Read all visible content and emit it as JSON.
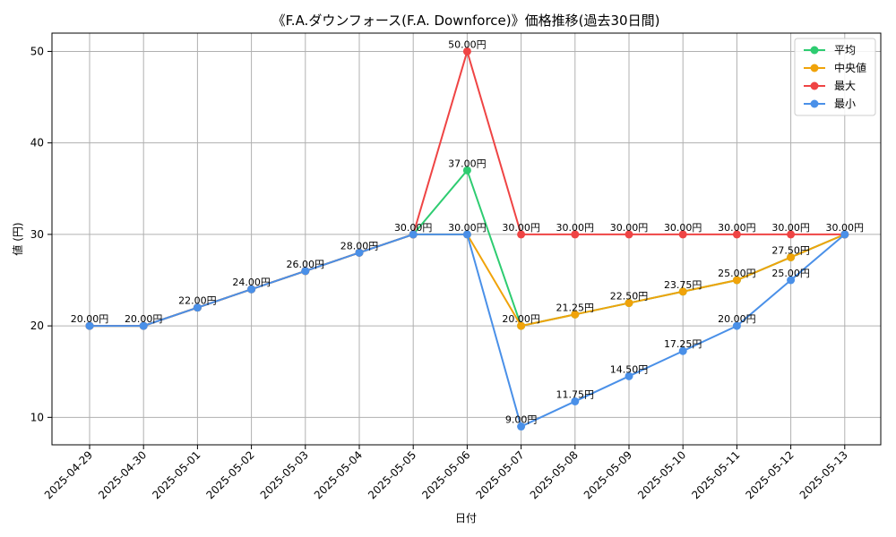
{
  "chart_data": {
    "type": "line",
    "title": "《F.A.ダウンフォース(F.A. Downforce)》価格推移(過去30日間)",
    "xlabel": "日付",
    "ylabel": "値 (円)",
    "ylim": [
      7,
      52
    ],
    "yticks": [
      10,
      20,
      30,
      40,
      50
    ],
    "grid": true,
    "legend_position": "top-right",
    "categories": [
      "2025-04-29",
      "2025-04-30",
      "2025-05-01",
      "2025-05-02",
      "2025-05-03",
      "2025-05-04",
      "2025-05-05",
      "2025-05-06",
      "2025-05-07",
      "2025-05-08",
      "2025-05-09",
      "2025-05-10",
      "2025-05-11",
      "2025-05-12",
      "2025-05-13"
    ],
    "value_suffix": "円",
    "series": [
      {
        "name": "平均",
        "color": "#2ecc71",
        "values": [
          20,
          20,
          22,
          24,
          26,
          28,
          30,
          37,
          20,
          21.25,
          22.5,
          23.75,
          25,
          27.5,
          30
        ],
        "labels": [
          null,
          null,
          null,
          null,
          null,
          null,
          null,
          "37.00円",
          null,
          null,
          null,
          null,
          null,
          null,
          null
        ]
      },
      {
        "name": "中央値",
        "color": "#f0a30a",
        "values": [
          20,
          20,
          22,
          24,
          26,
          28,
          30,
          30,
          20,
          21.25,
          22.5,
          23.75,
          25,
          27.5,
          30
        ],
        "labels": [
          "20.00円",
          "20.00円",
          "22.00円",
          "24.00円",
          "26.00円",
          "28.00円",
          "30.00円",
          null,
          "20.00円",
          "21.25円",
          "22.50円",
          "23.75円",
          "25.00円",
          "27.50円",
          "30.00円"
        ]
      },
      {
        "name": "最大",
        "color": "#ef4444",
        "values": [
          20,
          20,
          22,
          24,
          26,
          28,
          30,
          50,
          30,
          30,
          30,
          30,
          30,
          30,
          30
        ],
        "labels": [
          null,
          null,
          null,
          null,
          null,
          null,
          null,
          "50.00円",
          "30.00円",
          "30.00円",
          "30.00円",
          "30.00円",
          "30.00円",
          "30.00円",
          null
        ]
      },
      {
        "name": "最小",
        "color": "#4a90e8",
        "values": [
          20,
          20,
          22,
          24,
          26,
          28,
          30,
          30,
          9,
          11.75,
          14.5,
          17.25,
          20,
          25,
          30
        ],
        "labels": [
          null,
          null,
          null,
          null,
          null,
          null,
          null,
          "30.00円",
          "9.00円",
          "11.75円",
          "14.50円",
          "17.25円",
          "20.00円",
          "25.00円",
          null
        ]
      }
    ]
  }
}
